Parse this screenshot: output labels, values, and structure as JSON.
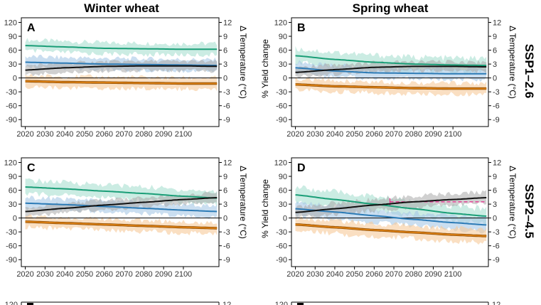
{
  "figure": {
    "column_titles": [
      "Winter wheat",
      "Spring wheat"
    ],
    "row_titles": [
      "SSP1–2.6",
      "SSP2–4.5"
    ],
    "partial_tick_label": "120",
    "partial_right_tick_label": "12",
    "colors": {
      "green": "#1a9e77",
      "green_band": "#a8e0d0",
      "blue": "#2c7bb6",
      "blue_band": "#a6c8e6",
      "black": "#111111",
      "black_band": "#a9a9a9",
      "orange": "#e08214",
      "orange_band": "#f7c99a",
      "red_dash": "#e7298a"
    }
  },
  "chart_data": [
    {
      "type": "line",
      "panel": "A",
      "crop": "Winter wheat",
      "scenario": "SSP1–2.6",
      "ylabel_left": "",
      "ylabel_right": "Δ Temperature (°C)",
      "xlim": [
        2018,
        2118
      ],
      "ylim": [
        -105,
        130
      ],
      "y2lim": [
        -10.5,
        13
      ],
      "x_ticks": [
        2020,
        2030,
        2040,
        2050,
        2060,
        2070,
        2080,
        2090,
        2100
      ],
      "y_ticks": [
        120,
        90,
        60,
        30,
        0,
        -30,
        -60,
        -90
      ],
      "y2_ticks": [
        12,
        9,
        6,
        3,
        0,
        -3,
        -6,
        -9
      ],
      "series": [
        {
          "color": "green",
          "x": [
            2020,
            2040,
            2060,
            2080,
            2100,
            2117
          ],
          "y": [
            70,
            67,
            64,
            63,
            62,
            62
          ],
          "band": 12
        },
        {
          "color": "blue",
          "x": [
            2020,
            2040,
            2060,
            2080,
            2100,
            2117
          ],
          "y": [
            34,
            32,
            30,
            29,
            28,
            27
          ],
          "band": 12
        },
        {
          "color": "black",
          "x": [
            2020,
            2040,
            2060,
            2080,
            2100,
            2117
          ],
          "y": [
            17,
            22,
            25,
            26,
            26,
            25
          ],
          "band": 10
        },
        {
          "color": "orange",
          "x": [
            2020,
            2040,
            2060,
            2080,
            2100,
            2117
          ],
          "y": [
            -7,
            -9,
            -10,
            -11,
            -12,
            -12
          ],
          "band": 12
        }
      ]
    },
    {
      "type": "line",
      "panel": "B",
      "crop": "Spring wheat",
      "scenario": "SSP1–2.6",
      "ylabel_left": "% Yield change",
      "ylabel_right": "Δ Temperature (°C)",
      "xlim": [
        2018,
        2118
      ],
      "ylim": [
        -105,
        130
      ],
      "y2lim": [
        -10.5,
        13
      ],
      "x_ticks": [
        2020,
        2030,
        2040,
        2050,
        2060,
        2070,
        2080,
        2090,
        2100
      ],
      "y_ticks": [
        120,
        90,
        60,
        30,
        0,
        -30,
        -60,
        -90
      ],
      "y2_ticks": [
        12,
        9,
        6,
        3,
        0,
        -3,
        -6,
        -9
      ],
      "series": [
        {
          "color": "green",
          "x": [
            2020,
            2040,
            2060,
            2080,
            2100,
            2117
          ],
          "y": [
            48,
            40,
            34,
            30,
            28,
            27
          ],
          "band": 15
        },
        {
          "color": "blue",
          "x": [
            2020,
            2040,
            2060,
            2080,
            2100,
            2117
          ],
          "y": [
            22,
            15,
            11,
            10,
            9,
            9
          ],
          "band": 12
        },
        {
          "color": "black",
          "x": [
            2020,
            2040,
            2060,
            2080,
            2100,
            2117
          ],
          "y": [
            12,
            18,
            23,
            25,
            25,
            24
          ],
          "band": 10
        },
        {
          "color": "orange",
          "x": [
            2020,
            2040,
            2060,
            2080,
            2100,
            2117
          ],
          "y": [
            -14,
            -18,
            -20,
            -22,
            -23,
            -23
          ],
          "band": 12
        }
      ]
    },
    {
      "type": "line",
      "panel": "C",
      "crop": "Winter wheat",
      "scenario": "SSP2–4.5",
      "ylabel_left": "",
      "ylabel_right": "Δ Temperature (°C)",
      "xlim": [
        2018,
        2118
      ],
      "ylim": [
        -105,
        130
      ],
      "y2lim": [
        -10.5,
        13
      ],
      "x_ticks": [
        2020,
        2030,
        2040,
        2050,
        2060,
        2070,
        2080,
        2090,
        2100
      ],
      "y_ticks": [
        120,
        90,
        60,
        30,
        0,
        -30,
        -60,
        -90
      ],
      "y2_ticks": [
        12,
        9,
        6,
        3,
        0,
        -3,
        -6,
        -9
      ],
      "series": [
        {
          "color": "green",
          "x": [
            2020,
            2040,
            2060,
            2080,
            2100,
            2117
          ],
          "y": [
            67,
            63,
            58,
            53,
            47,
            43
          ],
          "band": 14
        },
        {
          "color": "blue",
          "x": [
            2020,
            2040,
            2060,
            2080,
            2100,
            2117
          ],
          "y": [
            32,
            29,
            25,
            21,
            17,
            14
          ],
          "band": 12
        },
        {
          "color": "black",
          "x": [
            2020,
            2040,
            2060,
            2080,
            2100,
            2117
          ],
          "y": [
            14,
            21,
            28,
            34,
            40,
            44
          ],
          "band": 10
        },
        {
          "color": "orange",
          "x": [
            2020,
            2040,
            2060,
            2080,
            2100,
            2117
          ],
          "y": [
            -8,
            -11,
            -14,
            -17,
            -20,
            -22
          ],
          "band": 12
        }
      ]
    },
    {
      "type": "line",
      "panel": "D",
      "crop": "Spring wheat",
      "scenario": "SSP2–4.5",
      "ylabel_left": "% Yield change",
      "ylabel_right": "Δ Temperature (°C)",
      "xlim": [
        2018,
        2118
      ],
      "ylim": [
        -105,
        130
      ],
      "y2lim": [
        -10.5,
        13
      ],
      "x_ticks": [
        2020,
        2030,
        2040,
        2050,
        2060,
        2070,
        2080,
        2090,
        2100
      ],
      "y_ticks": [
        120,
        90,
        60,
        30,
        0,
        -30,
        -60,
        -90
      ],
      "y2_ticks": [
        12,
        9,
        6,
        3,
        0,
        -3,
        -6,
        -9
      ],
      "series": [
        {
          "color": "green",
          "x": [
            2020,
            2040,
            2060,
            2080,
            2100,
            2117
          ],
          "y": [
            50,
            40,
            30,
            20,
            10,
            4
          ],
          "band": 16
        },
        {
          "color": "blue",
          "x": [
            2020,
            2040,
            2060,
            2080,
            2100,
            2117
          ],
          "y": [
            20,
            13,
            5,
            -3,
            -10,
            -15
          ],
          "band": 14
        },
        {
          "color": "black",
          "x": [
            2020,
            2040,
            2060,
            2080,
            2100,
            2117
          ],
          "y": [
            12,
            20,
            28,
            35,
            40,
            44
          ],
          "band": 12
        },
        {
          "color": "orange",
          "x": [
            2020,
            2040,
            2060,
            2080,
            2100,
            2117
          ],
          "y": [
            -14,
            -20,
            -26,
            -31,
            -36,
            -39
          ],
          "band": 14
        }
      ],
      "threshold": {
        "color": "red_dash",
        "x": [
          2068,
          2117
        ],
        "y": 35
      }
    }
  ]
}
